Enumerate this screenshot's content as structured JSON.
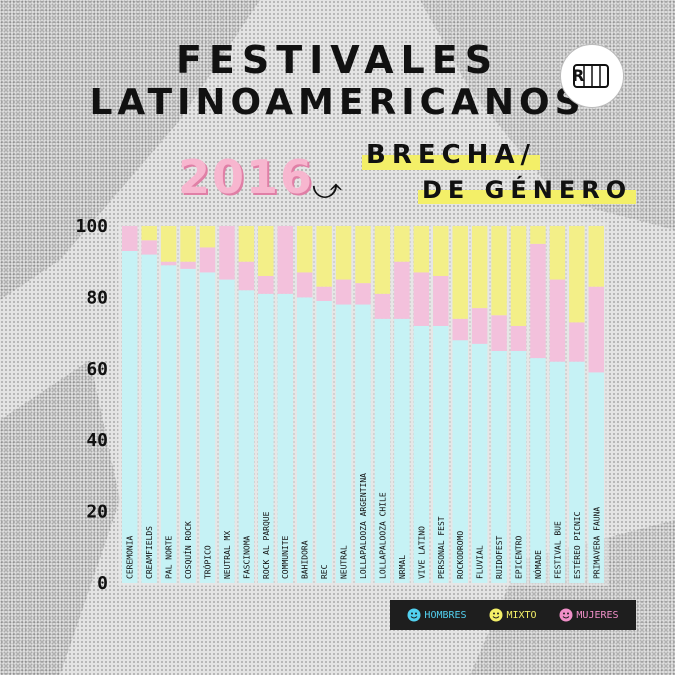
{
  "title_line1": "FESTIVALES",
  "title_line2": "LATINOAMERICANOS",
  "year": "2016",
  "subtitle_line1": "BRECHA/",
  "subtitle_line2": "DE GÉNERO",
  "colors": {
    "hombres": "#c6f2f5",
    "mixto": "#f3ef88",
    "mujeres": "#f3c1dc",
    "legend_bg": "#1e1e1e"
  },
  "legend": [
    {
      "label": "HOMBRES",
      "color": "#52d0ef",
      "icon": "smiley-face-icon"
    },
    {
      "label": "MIXTO",
      "color": "#f3ef68",
      "icon": "smiley-face-icon"
    },
    {
      "label": "MUJERES",
      "color": "#f08fc8",
      "icon": "smiley-face-icon"
    }
  ],
  "chart_data": {
    "type": "bar",
    "stacked": true,
    "ylim": [
      0,
      100
    ],
    "yticks": [
      0,
      20,
      40,
      60,
      80,
      100
    ],
    "categories": [
      "CEREMONIA",
      "CREAMFIELDS",
      "PAL NORTE",
      "COSQUÍN ROCK",
      "TRÓPICO",
      "NEUTRAL MX",
      "FASCINOMA",
      "ROCK AL PARQUE",
      "COMMUNITE",
      "BAHIDORA",
      "REC",
      "NEUTRAL",
      "LOLLAPALOOZA ARGENTINA",
      "LOLLAPALOOZA CHILE",
      "NRMAL",
      "VIVE LATINO",
      "PERSONAL FEST",
      "ROCKODROMO",
      "FLUVIAL",
      "RUIDOFEST",
      "EPICENTRO",
      "NÓMADE",
      "FESTIVAL BUE",
      "ESTÉREO PICNIC",
      "PRIMAVERA FAUNA"
    ],
    "series": [
      {
        "name": "HOMBRES",
        "values": [
          93,
          92,
          89,
          88,
          87,
          85,
          82,
          81,
          81,
          80,
          79,
          78,
          78,
          74,
          74,
          72,
          72,
          68,
          67,
          65,
          65,
          63,
          62,
          62,
          59
        ]
      },
      {
        "name": "MUJERES",
        "values": [
          7,
          4,
          1,
          2,
          7,
          15,
          8,
          5,
          19,
          7,
          4,
          7,
          6,
          7,
          16,
          15,
          14,
          6,
          10,
          10,
          7,
          32,
          23,
          11,
          24
        ]
      },
      {
        "name": "MIXTO",
        "values": [
          0,
          4,
          10,
          10,
          6,
          0,
          10,
          14,
          0,
          13,
          17,
          15,
          16,
          19,
          10,
          13,
          14,
          26,
          23,
          25,
          28,
          5,
          15,
          27,
          17
        ]
      }
    ]
  }
}
